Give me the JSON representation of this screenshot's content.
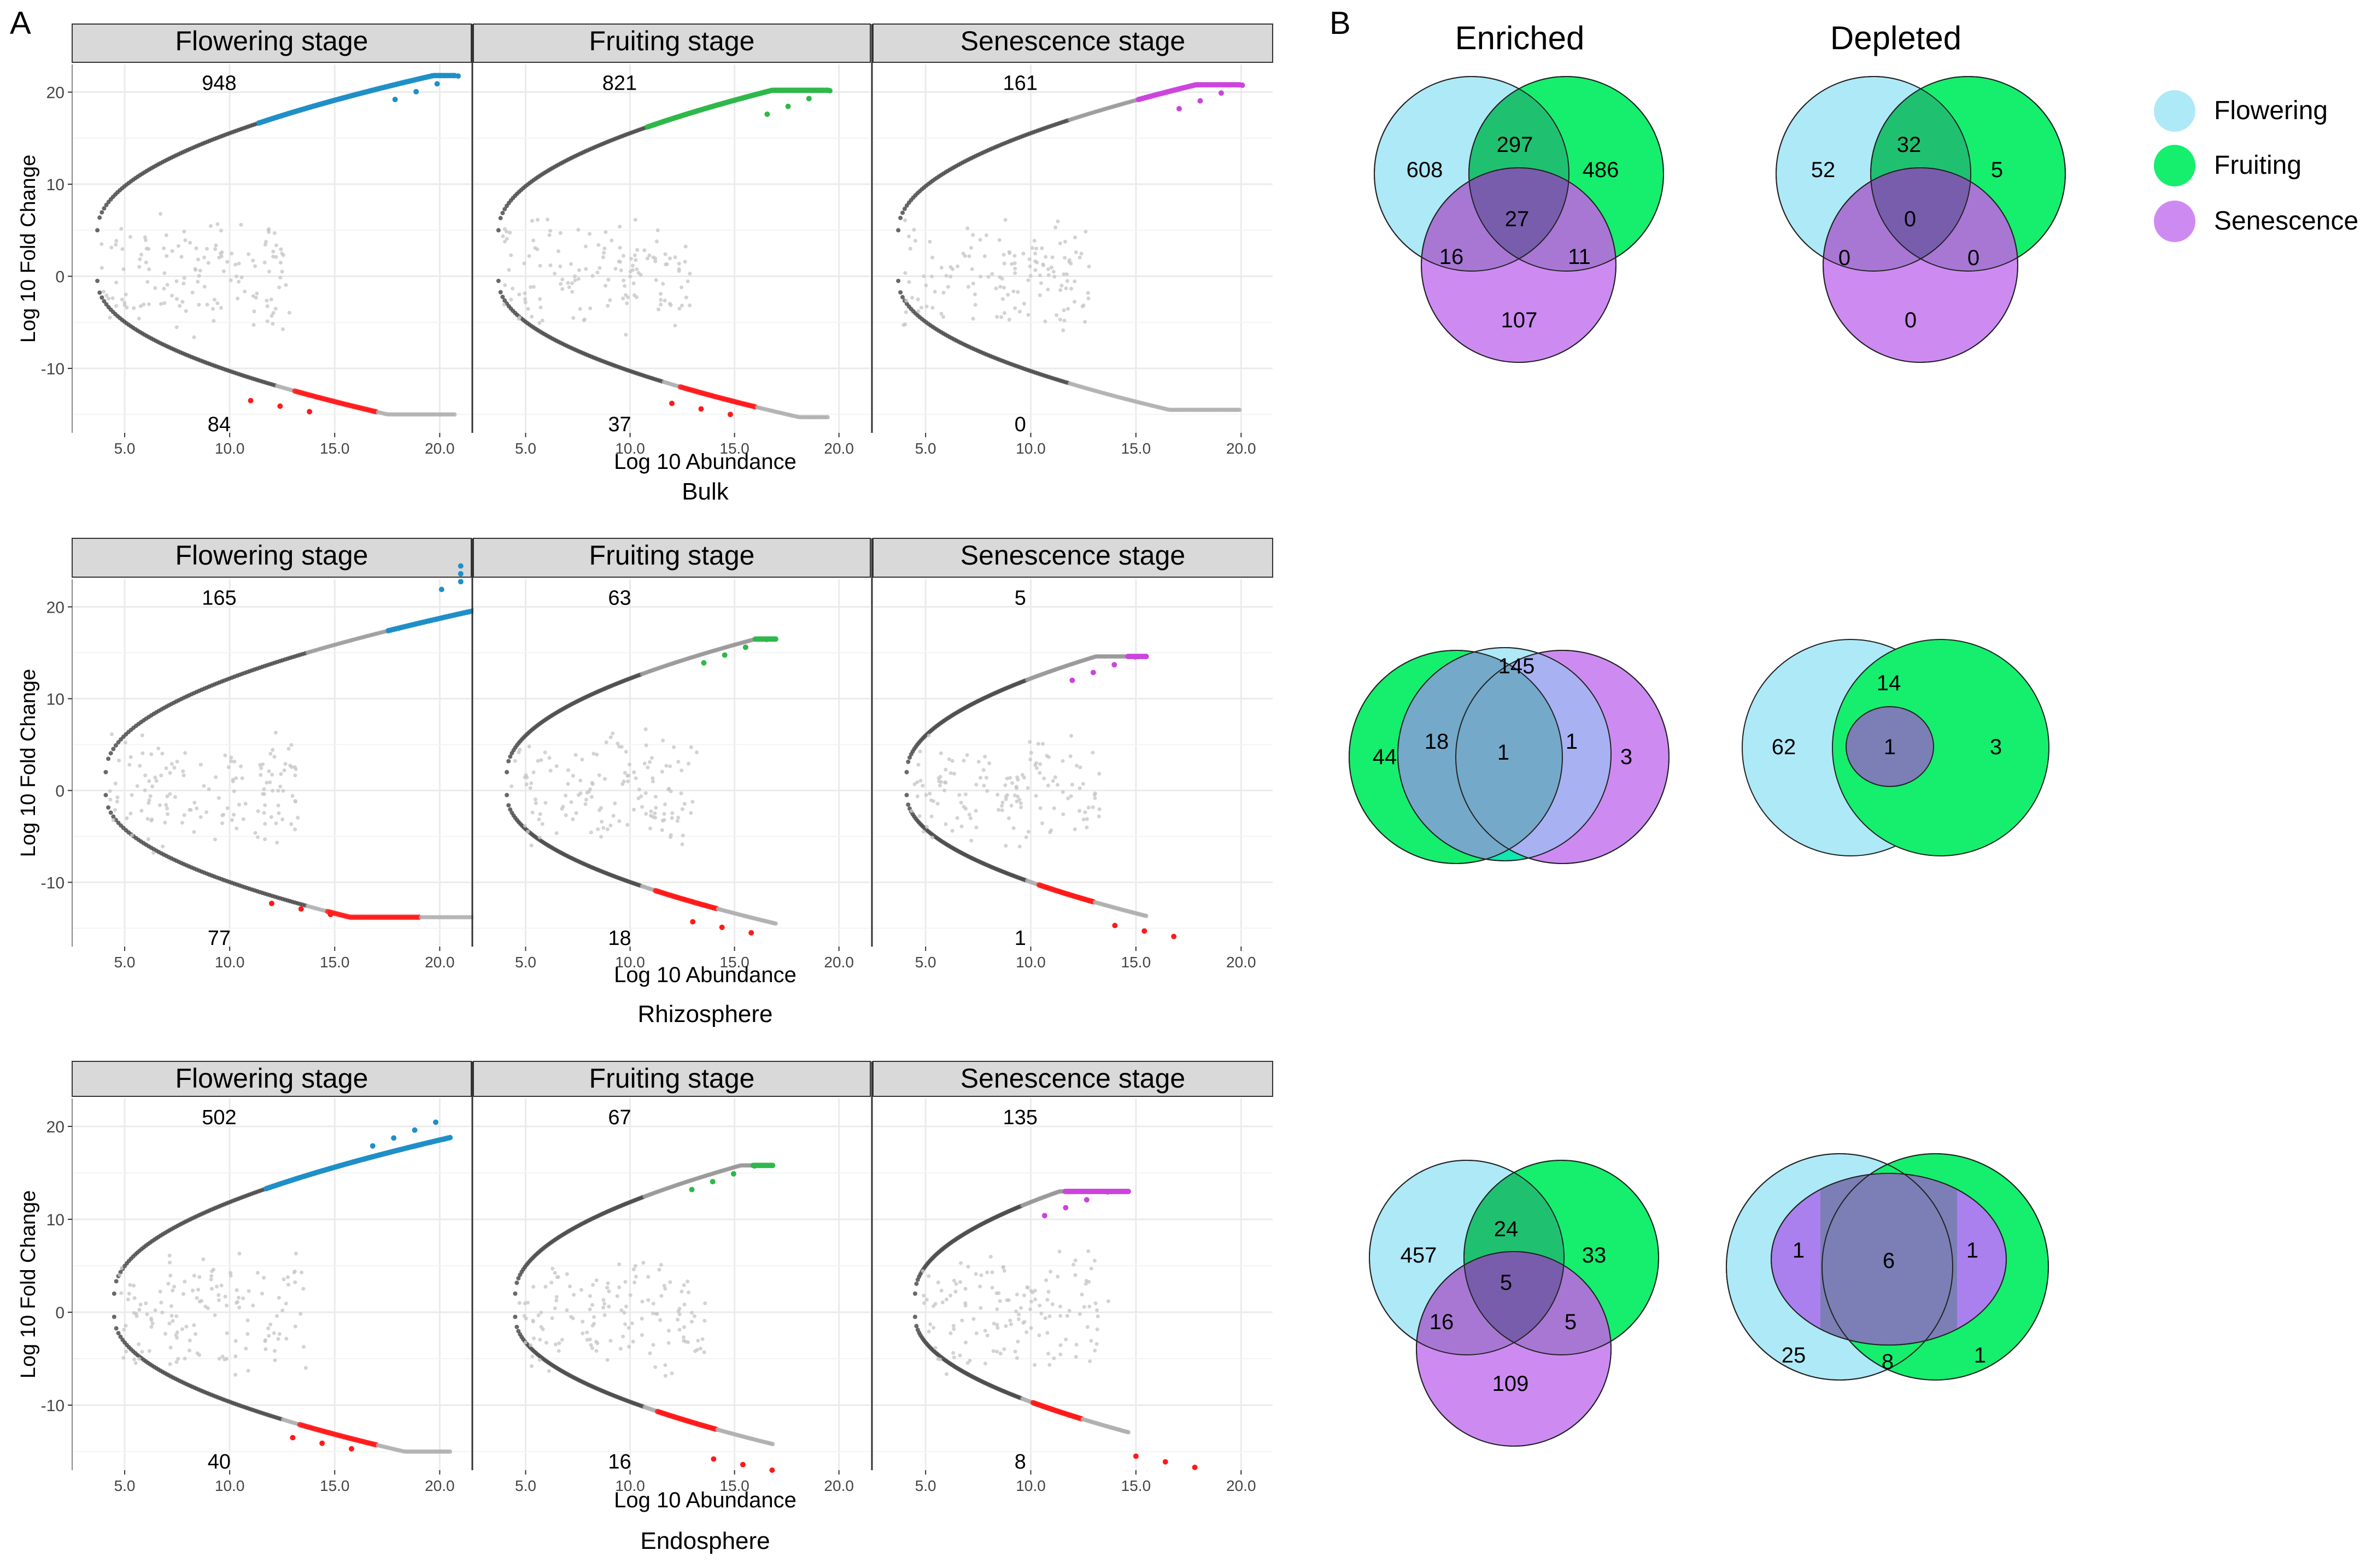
{
  "panel_letters": {
    "a": "A",
    "b": "B"
  },
  "strip_titles": [
    "Flowering stage",
    "Fruiting stage",
    "Senescence stage"
  ],
  "axis": {
    "xlabel": "Log 10 Abundance",
    "ylabel": "Log 10 Fold Change",
    "y_ticks": [
      "20",
      "10",
      "0",
      "-10"
    ]
  },
  "colors": {
    "flowering_points": "#1f8fc7",
    "fruiting_points": "#2eb84a",
    "senescence_points": "#cc44dd",
    "depleted_points": "#ff1a1a",
    "strip_bg": "#d9d9d9",
    "venn_flowering": "#aee9f7",
    "venn_fruiting": "#16ee6e",
    "venn_senescence": "#cd8bf2"
  },
  "rows": [
    {
      "compartment": "Bulk",
      "x_ticks": [
        [
          "5.0",
          "10.0",
          "15.0",
          "20.0"
        ],
        [
          "5.0",
          "10.0",
          "15.0",
          "20.0"
        ],
        [
          "5.0",
          "10.0",
          "15.0",
          "20.0"
        ]
      ],
      "enriched_counts": [
        "948",
        "821",
        "161"
      ],
      "depleted_counts": [
        "84",
        "37",
        "0"
      ]
    },
    {
      "compartment": "Rhizosphere",
      "x_ticks": [
        [
          "5.0",
          "10.0",
          "15.0",
          "20.0"
        ],
        [
          "5.0",
          "10.0",
          "15.0",
          "20.0"
        ],
        [
          "5.0",
          "10.0",
          "15.0",
          "20.0"
        ]
      ],
      "enriched_counts": [
        "165",
        "63",
        "5"
      ],
      "depleted_counts": [
        "77",
        "18",
        "1"
      ]
    },
    {
      "compartment": "Endosphere",
      "x_ticks": [
        [
          "5.0",
          "10.0",
          "15.0",
          "20.0"
        ],
        [
          "5.0",
          "10.0",
          "15.0",
          "20.0"
        ],
        [
          "5.0",
          "10.0",
          "15.0",
          "20.0"
        ]
      ],
      "enriched_counts": [
        "502",
        "67",
        "135"
      ],
      "depleted_counts": [
        "40",
        "16",
        "8"
      ]
    }
  ],
  "venn": {
    "enriched_title": "Enriched",
    "depleted_title": "Depleted",
    "legend": [
      "Flowering",
      "Fruiting",
      "Senescence"
    ],
    "bulk_enriched": {
      "flowering_only": "608",
      "fruiting_only": "486",
      "senescence_only": "107",
      "flowering_fruiting": "297",
      "flowering_senescence": "16",
      "fruiting_senescence": "11",
      "all_three": "27"
    },
    "bulk_depleted": {
      "flowering_only": "52",
      "fruiting_only": "5",
      "senescence_only": "0",
      "flowering_fruiting": "32",
      "flowering_senescence": "0",
      "fruiting_senescence": "0",
      "all_three": "0"
    },
    "rhizo_enriched": {
      "flowering_only": "145",
      "fruiting_only": "44",
      "senescence_only": "3",
      "flowering_fruiting": "18",
      "flowering_senescence": "1",
      "all_three": "1"
    },
    "rhizo_depleted": {
      "flowering_only": "62",
      "fruiting_only": "3",
      "flowering_fruiting": "14",
      "all_three": "1"
    },
    "endo_enriched": {
      "flowering_only": "457",
      "fruiting_only": "33",
      "senescence_only": "109",
      "flowering_fruiting": "24",
      "flowering_senescence": "16",
      "fruiting_senescence": "5",
      "all_three": "5"
    },
    "endo_depleted": {
      "flowering_only": "25",
      "fruiting_only": "1",
      "flowering_senescence": "1",
      "fruiting_senescence": "1",
      "flowering_fruiting": "8",
      "all_three": "6"
    }
  },
  "chart_data": {
    "type": "scatter",
    "description_source": "MA-type plots: x = Log 10 Abundance, y = Log 10 Fold Change; counts of significantly enriched (top) and depleted (bottom) OTUs per stage",
    "xlim": [
      2.5,
      21.5
    ],
    "ylim": [
      -17,
      23
    ],
    "facets": [
      {
        "row": "Bulk",
        "stage": "Flowering stage",
        "enriched": 948,
        "depleted": 84
      },
      {
        "row": "Bulk",
        "stage": "Fruiting stage",
        "enriched": 821,
        "depleted": 37
      },
      {
        "row": "Bulk",
        "stage": "Senescence stage",
        "enriched": 161,
        "depleted": 0
      },
      {
        "row": "Rhizosphere",
        "stage": "Flowering stage",
        "enriched": 165,
        "depleted": 77
      },
      {
        "row": "Rhizosphere",
        "stage": "Fruiting stage",
        "enriched": 63,
        "depleted": 18
      },
      {
        "row": "Rhizosphere",
        "stage": "Senescence stage",
        "enriched": 5,
        "depleted": 1
      },
      {
        "row": "Endosphere",
        "stage": "Flowering stage",
        "enriched": 502,
        "depleted": 40
      },
      {
        "row": "Endosphere",
        "stage": "Fruiting stage",
        "enriched": 67,
        "depleted": 16
      },
      {
        "row": "Endosphere",
        "stage": "Senescence stage",
        "enriched": 135,
        "depleted": 8
      }
    ]
  }
}
